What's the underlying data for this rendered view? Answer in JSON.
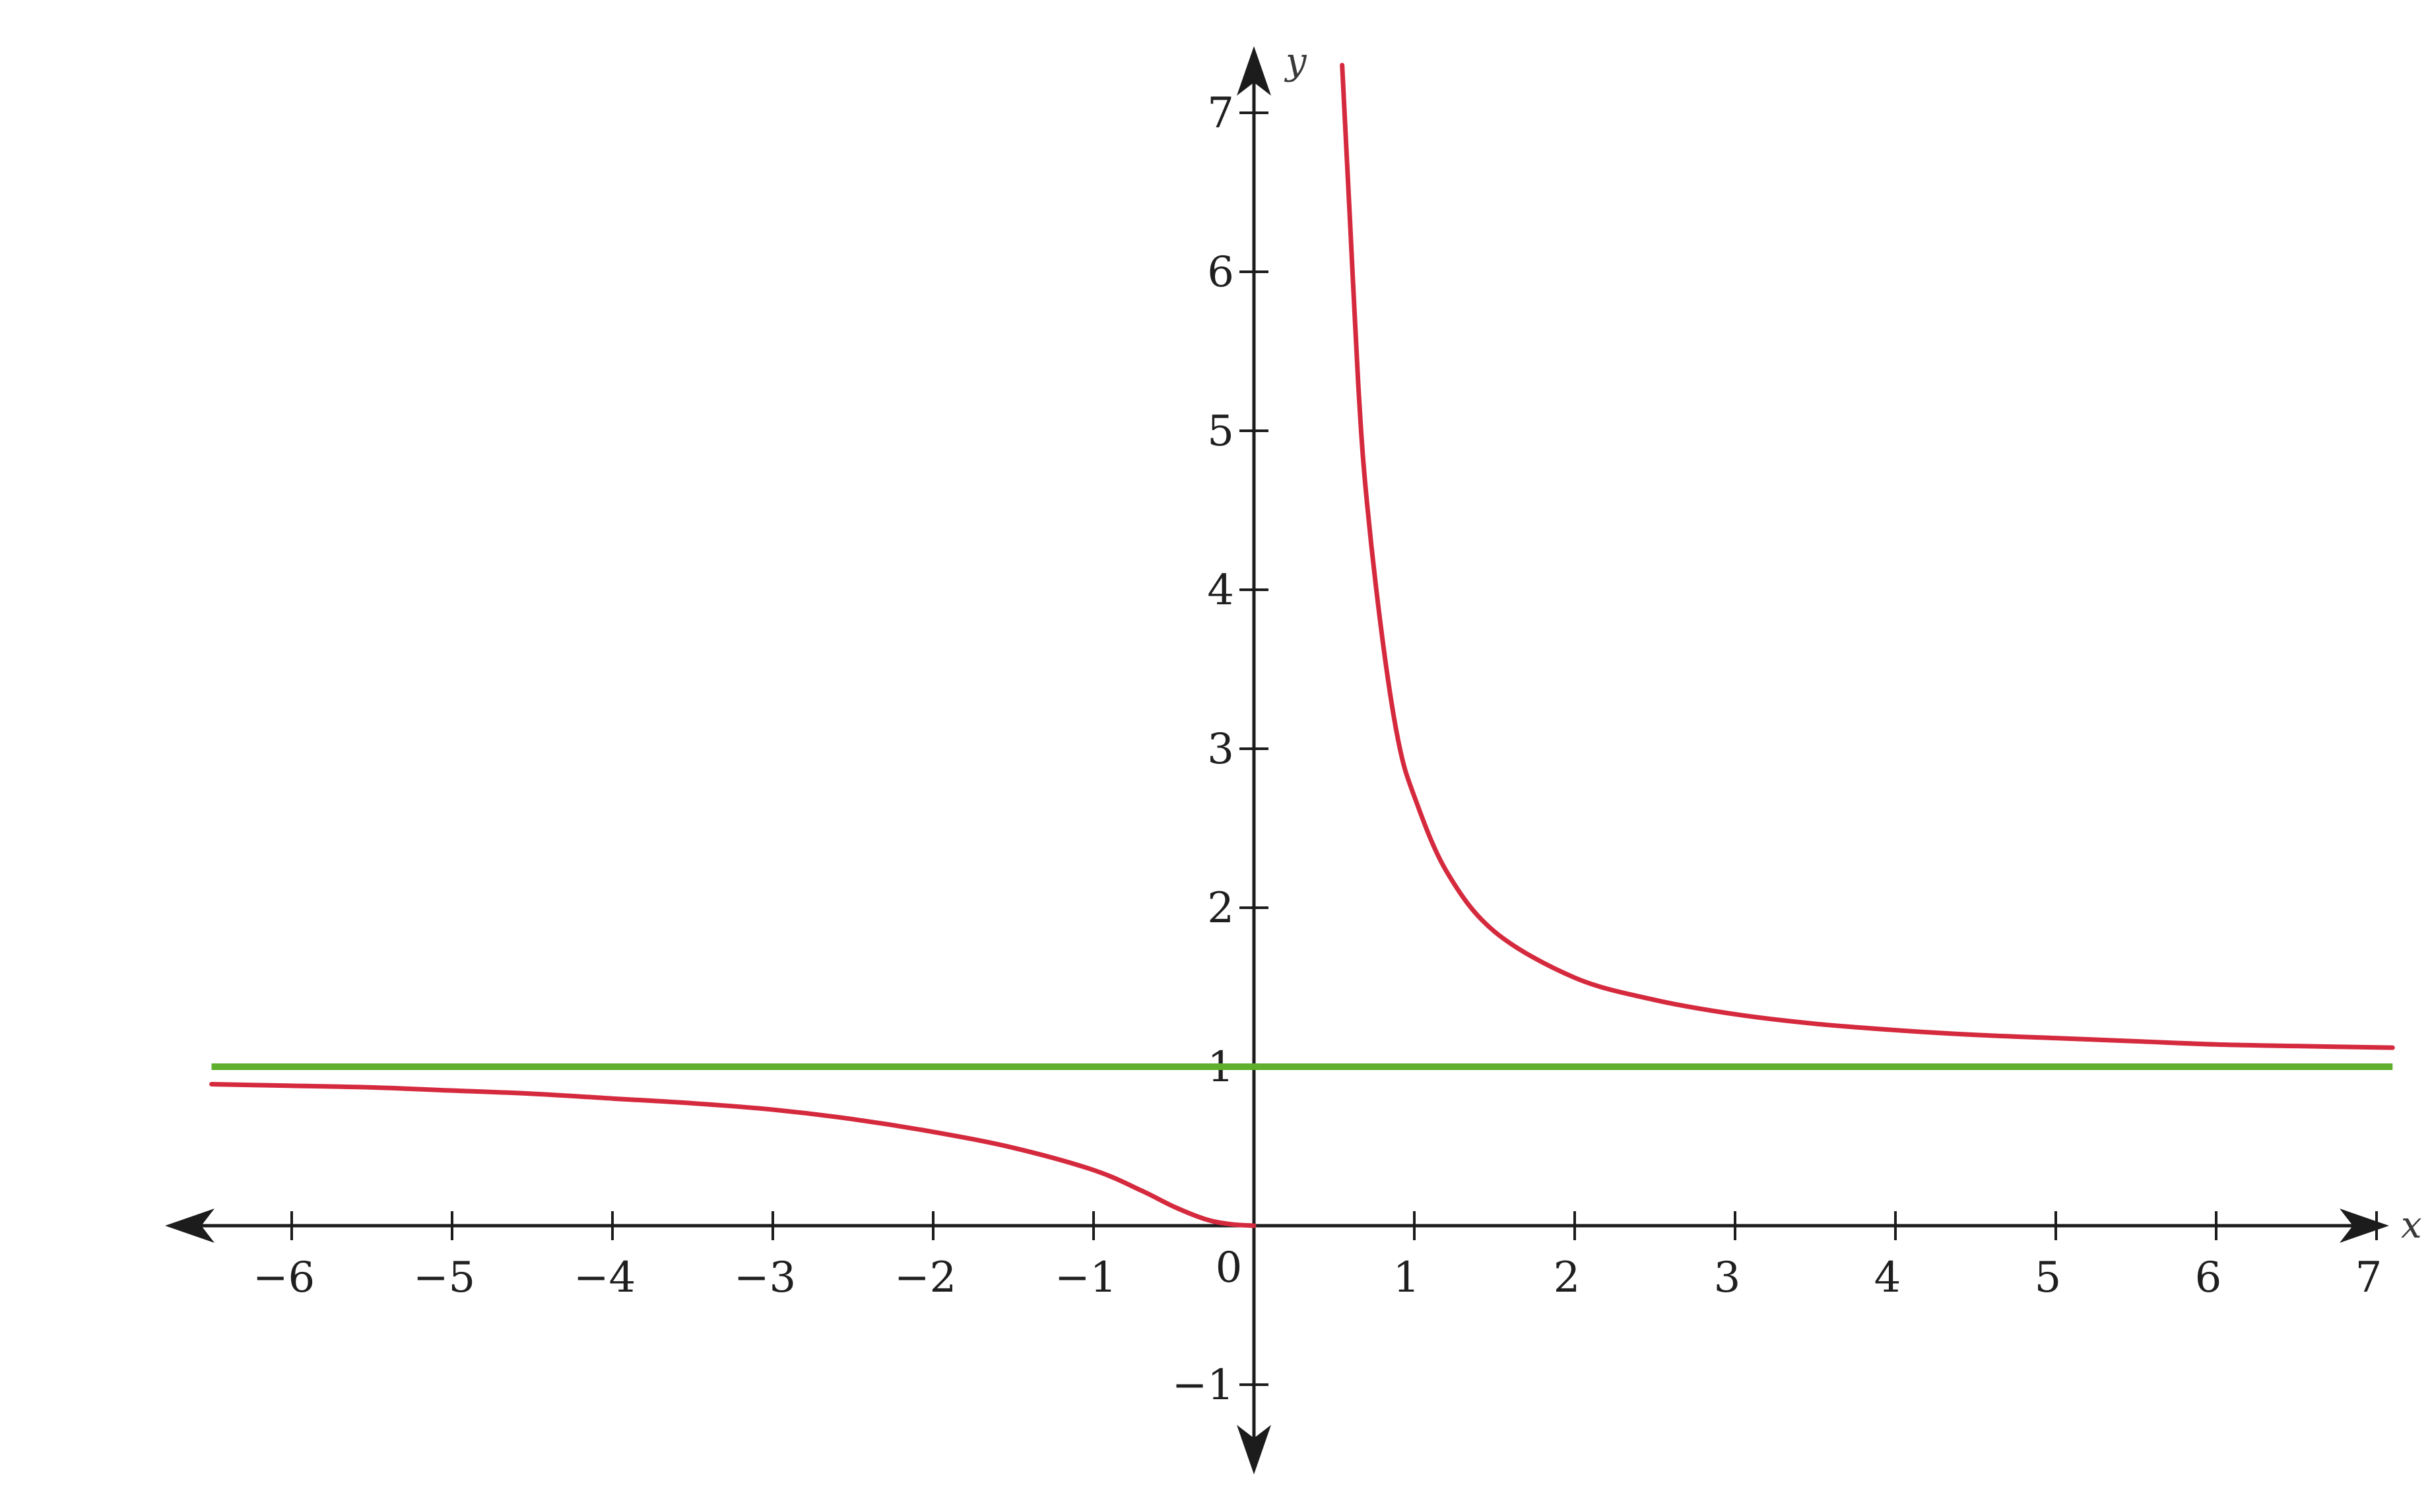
{
  "chart_data": {
    "type": "line",
    "xlabel": "x",
    "ylabel": "y",
    "xlim": [
      -6.5,
      7.2
    ],
    "ylim": [
      -1.3,
      7.3
    ],
    "x_ticks": [
      -6,
      -5,
      -4,
      -3,
      -2,
      -1,
      0,
      1,
      2,
      3,
      4,
      5,
      6,
      7
    ],
    "y_ticks": [
      -1,
      1,
      2,
      3,
      4,
      5,
      6,
      7
    ],
    "x_tick_labels": [
      "−6",
      "−5",
      "−4",
      "−3",
      "−2",
      "−1",
      "0",
      "1",
      "2",
      "3",
      "4",
      "5",
      "6",
      "7"
    ],
    "y_tick_labels": [
      "−1",
      "1",
      "2",
      "3",
      "4",
      "5",
      "6",
      "7"
    ],
    "grid": false,
    "legend": "none",
    "series": [
      {
        "color": "#d52a3e",
        "points": [
          [
            -6.5,
            0.89
          ],
          [
            -6,
            0.88
          ],
          [
            -5.5,
            0.87
          ],
          [
            -5,
            0.85
          ],
          [
            -4.5,
            0.83
          ],
          [
            -4,
            0.8
          ],
          [
            -3.5,
            0.77
          ],
          [
            -3,
            0.73
          ],
          [
            -2.5,
            0.67
          ],
          [
            -2,
            0.59
          ],
          [
            -1.5,
            0.49
          ],
          [
            -1,
            0.35
          ],
          [
            -0.7,
            0.22
          ],
          [
            -0.5,
            0.12
          ],
          [
            -0.3,
            0.04
          ],
          [
            -0.15,
            0.01
          ],
          [
            0,
            0
          ]
        ]
      },
      {
        "color": "#d52a3e",
        "points": [
          [
            0.55,
            7.3
          ],
          [
            0.6,
            6.3
          ],
          [
            0.65,
            5.3
          ],
          [
            0.7,
            4.6
          ],
          [
            0.8,
            3.7
          ],
          [
            0.9,
            3.05
          ],
          [
            1,
            2.7
          ],
          [
            1.2,
            2.23
          ],
          [
            1.5,
            1.85
          ],
          [
            2,
            1.56
          ],
          [
            2.5,
            1.42
          ],
          [
            3,
            1.33
          ],
          [
            3.5,
            1.27
          ],
          [
            4,
            1.23
          ],
          [
            4.5,
            1.2
          ],
          [
            5,
            1.18
          ],
          [
            5.5,
            1.16
          ],
          [
            6,
            1.14
          ],
          [
            6.5,
            1.13
          ],
          [
            7.1,
            1.12
          ]
        ]
      },
      {
        "color": "#5fae2c",
        "points": [
          [
            -6.5,
            1
          ],
          [
            7.1,
            1
          ]
        ]
      }
    ]
  }
}
